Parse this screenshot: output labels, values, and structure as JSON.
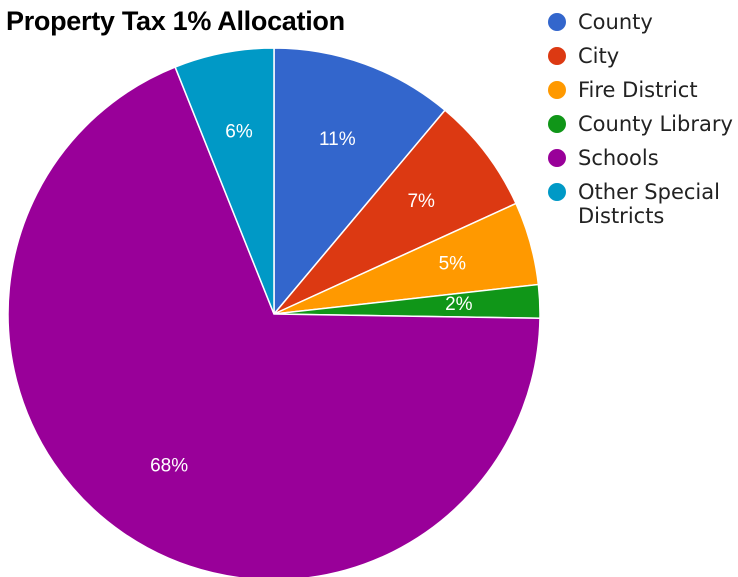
{
  "chart_data": {
    "type": "pie",
    "title": "Property Tax 1% Allocation",
    "legend_position": "right",
    "slices": [
      {
        "name": "County",
        "value": 11,
        "label": "11%",
        "color": "#3366cc"
      },
      {
        "name": "City",
        "value": 7,
        "label": "7%",
        "color": "#dc3912"
      },
      {
        "name": "Fire District",
        "value": 5,
        "label": "5%",
        "color": "#ff9900"
      },
      {
        "name": "County Library",
        "value": 2,
        "label": "2%",
        "color": "#109618"
      },
      {
        "name": "Schools",
        "value": 68,
        "label": "68%",
        "color": "#990099"
      },
      {
        "name": "Other Special Districts",
        "value": 6,
        "label": "6%",
        "color": "#0099c6"
      }
    ]
  }
}
